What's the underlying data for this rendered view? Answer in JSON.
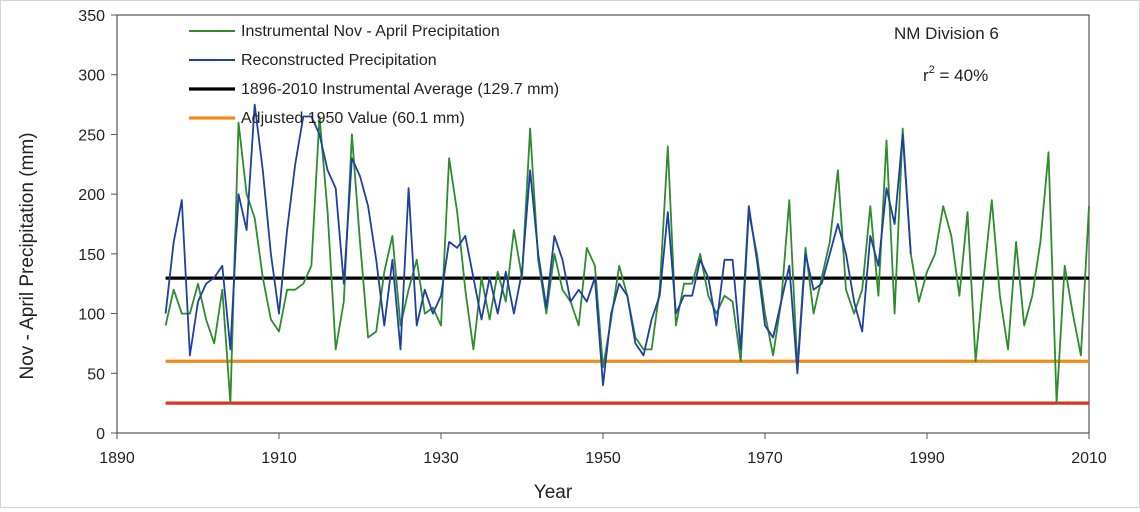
{
  "chart_data": {
    "type": "line",
    "title": "",
    "xlabel": "Year",
    "ylabel": "Nov - April Precipitation (mm)",
    "xlim": [
      1890,
      2010
    ],
    "ylim": [
      0,
      350
    ],
    "x_ticks": [
      1890,
      1910,
      1930,
      1950,
      1970,
      1990,
      2010
    ],
    "y_ticks": [
      0,
      50,
      100,
      150,
      200,
      250,
      300,
      350
    ],
    "grid": false,
    "legend_position": "top-left",
    "annotations": {
      "region": "NM Division 6",
      "r2_prefix": "r",
      "r2_sup": "2",
      "r2_value": " = 40%"
    },
    "series": [
      {
        "name": "Instrumental Nov - April Precipitation",
        "color": "#2e8b2e",
        "x": [
          1896,
          1897,
          1898,
          1899,
          1900,
          1901,
          1902,
          1903,
          1904,
          1905,
          1906,
          1907,
          1908,
          1909,
          1910,
          1911,
          1912,
          1913,
          1914,
          1915,
          1916,
          1917,
          1918,
          1919,
          1920,
          1921,
          1922,
          1923,
          1924,
          1925,
          1926,
          1927,
          1928,
          1929,
          1930,
          1931,
          1932,
          1933,
          1934,
          1935,
          1936,
          1937,
          1938,
          1939,
          1940,
          1941,
          1942,
          1943,
          1944,
          1945,
          1946,
          1947,
          1948,
          1949,
          1950,
          1951,
          1952,
          1953,
          1954,
          1955,
          1956,
          1957,
          1958,
          1959,
          1960,
          1961,
          1962,
          1963,
          1964,
          1965,
          1966,
          1967,
          1968,
          1969,
          1970,
          1971,
          1972,
          1973,
          1974,
          1975,
          1976,
          1977,
          1978,
          1979,
          1980,
          1981,
          1982,
          1983,
          1984,
          1985,
          1986,
          1987,
          1988,
          1989,
          1990,
          1991,
          1992,
          1993,
          1994,
          1995,
          1996,
          1997,
          1998,
          1999,
          2000,
          2001,
          2002,
          2003,
          2004,
          2005,
          2006,
          2007,
          2008,
          2009,
          2010
        ],
        "values": [
          90,
          120,
          100,
          100,
          125,
          95,
          75,
          120,
          25,
          260,
          200,
          180,
          130,
          95,
          85,
          120,
          120,
          125,
          140,
          265,
          185,
          70,
          110,
          250,
          160,
          80,
          85,
          135,
          165,
          90,
          120,
          145,
          100,
          105,
          90,
          230,
          185,
          120,
          70,
          130,
          95,
          135,
          110,
          170,
          130,
          255,
          145,
          100,
          150,
          120,
          110,
          90,
          155,
          140,
          55,
          95,
          140,
          115,
          80,
          70,
          70,
          120,
          240,
          90,
          125,
          125,
          150,
          115,
          100,
          115,
          110,
          60,
          185,
          150,
          100,
          65,
          110,
          195,
          55,
          155,
          100,
          130,
          160,
          220,
          120,
          100,
          120,
          190,
          115,
          245,
          100,
          255,
          150,
          110,
          135,
          150,
          190,
          165,
          115,
          185,
          60,
          130,
          195,
          115,
          70,
          160,
          90,
          115,
          160,
          235,
          25,
          140,
          100,
          65,
          190
        ]
      },
      {
        "name": "Reconstructed Precipitation",
        "color": "#1f3fa3",
        "x": [
          1896,
          1897,
          1898,
          1899,
          1900,
          1901,
          1902,
          1903,
          1904,
          1905,
          1906,
          1907,
          1908,
          1909,
          1910,
          1911,
          1912,
          1913,
          1914,
          1915,
          1916,
          1917,
          1918,
          1919,
          1920,
          1921,
          1922,
          1923,
          1924,
          1925,
          1926,
          1927,
          1928,
          1929,
          1930,
          1931,
          1932,
          1933,
          1934,
          1935,
          1936,
          1937,
          1938,
          1939,
          1940,
          1941,
          1942,
          1943,
          1944,
          1945,
          1946,
          1947,
          1948,
          1949,
          1950,
          1951,
          1952,
          1953,
          1954,
          1955,
          1956,
          1957,
          1958,
          1959,
          1960,
          1961,
          1962,
          1963,
          1964,
          1965,
          1966,
          1967,
          1968,
          1969,
          1970,
          1971,
          1972,
          1973,
          1974,
          1975,
          1976,
          1977,
          1978,
          1979,
          1980,
          1981,
          1982,
          1983,
          1984,
          1985,
          1986,
          1987,
          1988
        ],
        "values": [
          100,
          160,
          195,
          65,
          110,
          125,
          130,
          140,
          70,
          200,
          170,
          275,
          220,
          150,
          100,
          170,
          225,
          265,
          265,
          250,
          220,
          205,
          125,
          230,
          215,
          190,
          145,
          90,
          145,
          70,
          205,
          90,
          120,
          100,
          115,
          160,
          155,
          165,
          130,
          95,
          130,
          100,
          135,
          100,
          135,
          220,
          150,
          105,
          165,
          145,
          110,
          120,
          110,
          130,
          40,
          100,
          125,
          115,
          75,
          65,
          95,
          115,
          185,
          100,
          115,
          115,
          145,
          130,
          90,
          145,
          145,
          70,
          190,
          145,
          90,
          80,
          110,
          140,
          50,
          150,
          120,
          125,
          150,
          175,
          150,
          110,
          85,
          165,
          140,
          205,
          175,
          250,
          150
        ]
      },
      {
        "name": "1896-2010 Instrumental Average (129.7 mm)",
        "color": "#000000",
        "constant": 129.7,
        "x_range": [
          1896,
          2010
        ]
      },
      {
        "name": "Adjusted 1950 Value (60.1 mm)",
        "color": "#f08a1c",
        "constant": 60.1,
        "x_range": [
          1896,
          2010
        ]
      },
      {
        "name": "",
        "color": "#e0301e",
        "constant": 25,
        "x_range": [
          1896,
          2010
        ]
      }
    ]
  }
}
